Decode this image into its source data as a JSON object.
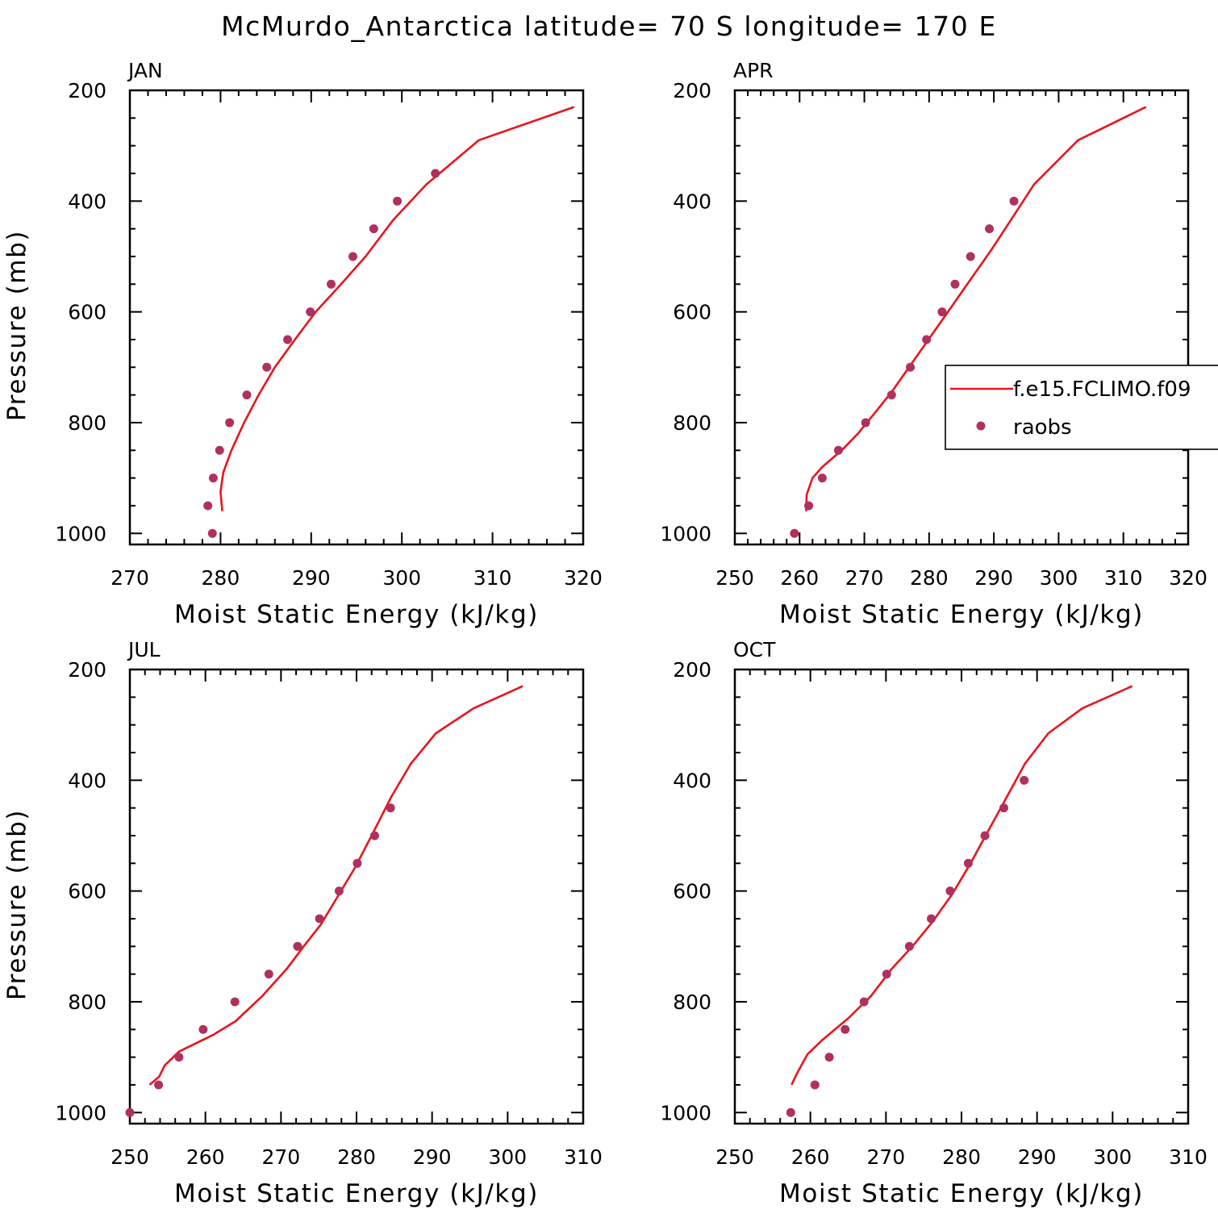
{
  "title": "McMurdo_Antarctica  latitude= 70 S longitude= 170 E",
  "colors": {
    "model": "#e8151b",
    "obs": "#b0305e",
    "axis": "#000000"
  },
  "legend": {
    "entries": [
      {
        "label": "f.e15.FCLIMO.f09",
        "marker": "line",
        "color": "#e8151b"
      },
      {
        "label": "raobs",
        "marker": "dot",
        "color": "#b0305e"
      }
    ],
    "placement": "right of APR panel, clipped at figure edge"
  },
  "chart_data": [
    {
      "type": "line",
      "panel": "JAN",
      "xlabel": "Moist Static Energy (kJ/kg)",
      "ylabel": "Pressure (mb)",
      "xlim": [
        270,
        320
      ],
      "ylim": [
        1000,
        200
      ],
      "xticks": [
        270,
        280,
        290,
        300,
        310,
        320
      ],
      "yticks": [
        200,
        400,
        600,
        800,
        1000
      ],
      "yticklabels": [
        "200",
        "400",
        "600",
        "800",
        "1000"
      ],
      "grid": false,
      "series": [
        {
          "name": "f.e15.FCLIMO.f09",
          "kind": "line",
          "x": [
            280.2,
            280.0,
            280.3,
            281.2,
            282.6,
            284.2,
            286.0,
            288.2,
            290.5,
            293.3,
            296.0,
            299.0,
            302.7,
            308.5,
            319.0
          ],
          "y": [
            960,
            925,
            890,
            850,
            800,
            750,
            700,
            650,
            600,
            550,
            500,
            435,
            370,
            290,
            230
          ]
        },
        {
          "name": "raobs",
          "kind": "scatter",
          "x": [
            279.1,
            278.6,
            279.2,
            279.9,
            281.0,
            282.9,
            285.1,
            287.4,
            289.9,
            292.2,
            294.6,
            296.9,
            299.5,
            303.7
          ],
          "y": [
            1000,
            950,
            900,
            850,
            800,
            750,
            700,
            650,
            600,
            550,
            500,
            450,
            400,
            350
          ]
        }
      ]
    },
    {
      "type": "line",
      "panel": "APR",
      "xlabel": "Moist Static Energy (kJ/kg)",
      "ylabel": "",
      "xlim": [
        250,
        320
      ],
      "ylim": [
        1000,
        200
      ],
      "xticks": [
        250,
        260,
        270,
        280,
        290,
        300,
        310,
        320
      ],
      "yticks": [
        200,
        400,
        600,
        800,
        1000
      ],
      "yticklabels": [
        "200",
        "400",
        "600",
        "800",
        "1000"
      ],
      "grid": false,
      "series": [
        {
          "name": "f.e15.FCLIMO.f09",
          "kind": "line",
          "x": [
            261.0,
            261.1,
            262.0,
            263.5,
            266.5,
            269.0,
            271.8,
            274.5,
            277.5,
            280.5,
            283.5,
            286.5,
            289.5,
            292.3,
            296.2,
            303.0,
            313.5
          ],
          "y": [
            960,
            930,
            900,
            880,
            850,
            820,
            780,
            740,
            690,
            640,
            590,
            540,
            490,
            440,
            370,
            290,
            230
          ]
        },
        {
          "name": "raobs",
          "kind": "scatter",
          "x": [
            259.2,
            261.4,
            263.5,
            266.0,
            270.2,
            274.2,
            277.1,
            279.6,
            282.0,
            284.0,
            286.4,
            289.3,
            293.1
          ],
          "y": [
            1000,
            950,
            900,
            850,
            800,
            750,
            700,
            650,
            600,
            550,
            500,
            450,
            400
          ]
        }
      ]
    },
    {
      "type": "line",
      "panel": "JUL",
      "xlabel": "Moist Static Energy (kJ/kg)",
      "ylabel": "Pressure (mb)",
      "xlim": [
        250,
        310
      ],
      "ylim": [
        1000,
        200
      ],
      "xticks": [
        250,
        260,
        270,
        280,
        290,
        300,
        310
      ],
      "yticks": [
        200,
        400,
        600,
        800,
        1000
      ],
      "yticklabels": [
        "200",
        "400",
        "600",
        "800",
        "1000"
      ],
      "grid": false,
      "series": [
        {
          "name": "f.e15.FCLIMO.f09",
          "kind": "line",
          "x": [
            252.6,
            253.9,
            254.6,
            256.5,
            261.0,
            264.0,
            267.5,
            270.8,
            273.0,
            275.3,
            277.5,
            279.7,
            282.0,
            284.6,
            287.2,
            290.5,
            295.5,
            302.0
          ],
          "y": [
            950,
            935,
            915,
            890,
            860,
            835,
            790,
            740,
            700,
            660,
            610,
            560,
            500,
            430,
            370,
            315,
            270,
            230
          ]
        },
        {
          "name": "raobs",
          "kind": "scatter",
          "x": [
            250.0,
            253.8,
            256.5,
            259.7,
            263.9,
            268.4,
            272.2,
            275.1,
            277.7,
            280.1,
            282.4,
            284.5
          ],
          "y": [
            1000,
            950,
            900,
            850,
            800,
            750,
            700,
            650,
            600,
            550,
            500,
            450
          ]
        }
      ]
    },
    {
      "type": "line",
      "panel": "OCT",
      "xlabel": "Moist Static Energy (kJ/kg)",
      "ylabel": "",
      "xlim": [
        250,
        310
      ],
      "ylim": [
        1000,
        200
      ],
      "xticks": [
        250,
        260,
        270,
        280,
        290,
        300,
        310
      ],
      "yticks": [
        200,
        400,
        600,
        800,
        1000
      ],
      "yticklabels": [
        "200",
        "400",
        "600",
        "800",
        "1000"
      ],
      "grid": false,
      "series": [
        {
          "name": "f.e15.FCLIMO.f09",
          "kind": "line",
          "x": [
            257.5,
            258.2,
            259.6,
            261.5,
            265.0,
            268.0,
            270.8,
            273.5,
            276.2,
            278.8,
            281.2,
            283.4,
            285.6,
            288.4,
            291.5,
            296.0,
            302.6
          ],
          "y": [
            950,
            930,
            895,
            870,
            830,
            790,
            740,
            700,
            655,
            605,
            550,
            495,
            440,
            370,
            315,
            270,
            230
          ]
        },
        {
          "name": "raobs",
          "kind": "scatter",
          "x": [
            257.4,
            260.6,
            262.5,
            264.6,
            267.1,
            270.1,
            273.1,
            276.0,
            278.5,
            280.9,
            283.1,
            285.6,
            288.3
          ],
          "y": [
            1000,
            950,
            900,
            850,
            800,
            750,
            700,
            650,
            600,
            550,
            500,
            450,
            400
          ]
        }
      ]
    }
  ]
}
